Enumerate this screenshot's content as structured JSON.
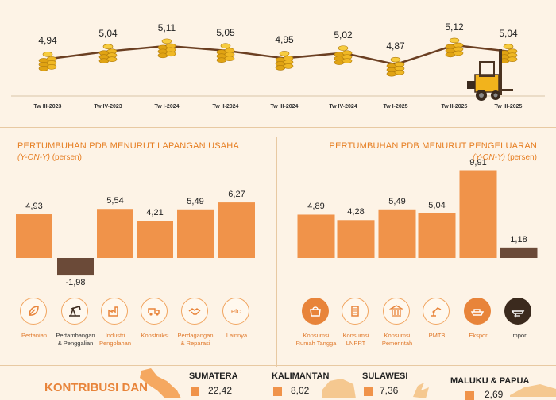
{
  "chart_data": [
    {
      "type": "line",
      "categories": [
        "Tw III-2023",
        "Tw IV-2023",
        "Tw I-2024",
        "Tw II-2024",
        "Tw III-2024",
        "Tw IV-2024",
        "Tw I-2025",
        "Tw II-2025",
        "Tw III-2025"
      ],
      "values": [
        4.94,
        5.04,
        5.11,
        5.05,
        4.95,
        5.02,
        4.87,
        5.12,
        5.04
      ],
      "value_labels": [
        "4,94",
        "5,04",
        "5,11",
        "5,05",
        "4,95",
        "5,02",
        "4,87",
        "5,12",
        "5,04"
      ]
    },
    {
      "type": "bar",
      "title": "PERTUMBUHAN PDB MENURUT LAPANGAN USAHA",
      "subtitle_italic": "(Y-ON-Y)",
      "subtitle_rest": " (persen)",
      "categories": [
        "Pertanian",
        "Pertambangan & Penggalian",
        "Industri Pengolahan",
        "Konstruksi",
        "Perdagangan & Reparasi",
        "Lainnya"
      ],
      "category_lines": [
        [
          "Pertanian"
        ],
        [
          "Pertambangan",
          "& Penggalian"
        ],
        [
          "Industri",
          "Pengolahan"
        ],
        [
          "Konstruksi"
        ],
        [
          "Perdagangan",
          "& Reparasi"
        ],
        [
          "Lainnya"
        ]
      ],
      "values": [
        4.93,
        -1.98,
        5.54,
        4.21,
        5.49,
        6.27
      ],
      "value_labels": [
        "4,93",
        "-1,98",
        "5,54",
        "4,21",
        "5,49",
        "6,27"
      ],
      "icons": [
        "leaf-icon",
        "oil-pump-icon",
        "factory-icon",
        "cement-truck-icon",
        "handshake-icon",
        "etc-icon"
      ]
    },
    {
      "type": "bar",
      "title": "PERTUMBUHAN PDB MENURUT PENGELUARAN",
      "subtitle_italic": "(Y-ON-Y)",
      "subtitle_rest": " (persen)",
      "categories": [
        "Konsumsi Rumah Tangga",
        "Konsumsi LNPRT",
        "Konsumsi Pemerintah",
        "PMTB",
        "Ekspor",
        "Impor"
      ],
      "category_lines": [
        [
          "Konsumsi",
          "Rumah Tangga"
        ],
        [
          "Konsumsi",
          "LNPRT"
        ],
        [
          "Konsumsi",
          "Pemerintah"
        ],
        [
          "PMTB"
        ],
        [
          "Ekspor"
        ],
        [
          "Impor"
        ]
      ],
      "values": [
        4.89,
        4.28,
        5.49,
        5.04,
        9.91,
        1.18
      ],
      "value_labels": [
        "4,89",
        "4,28",
        "5,49",
        "5,04",
        "9,91",
        "1,18"
      ],
      "icons": [
        "shopping-bag-icon",
        "building-icon",
        "government-icon",
        "robot-arm-icon",
        "ship-export-icon",
        "ship-import-icon"
      ]
    }
  ],
  "icon_etc_text": "etc",
  "bottom": {
    "title": "KONTRIBUSI DAN",
    "regions": [
      {
        "name": "SUMATERA",
        "value": "22,42"
      },
      {
        "name": "KALIMANTAN",
        "value": "8,02"
      },
      {
        "name": "SULAWESI",
        "value": "7,36"
      },
      {
        "name": "MALUKU & PAPUA",
        "value": "2,69"
      }
    ]
  },
  "colors": {
    "bar": "#f0934a",
    "negative_bar": "#6b4a38",
    "accent": "#e8843a",
    "line": "#6b3f22"
  }
}
